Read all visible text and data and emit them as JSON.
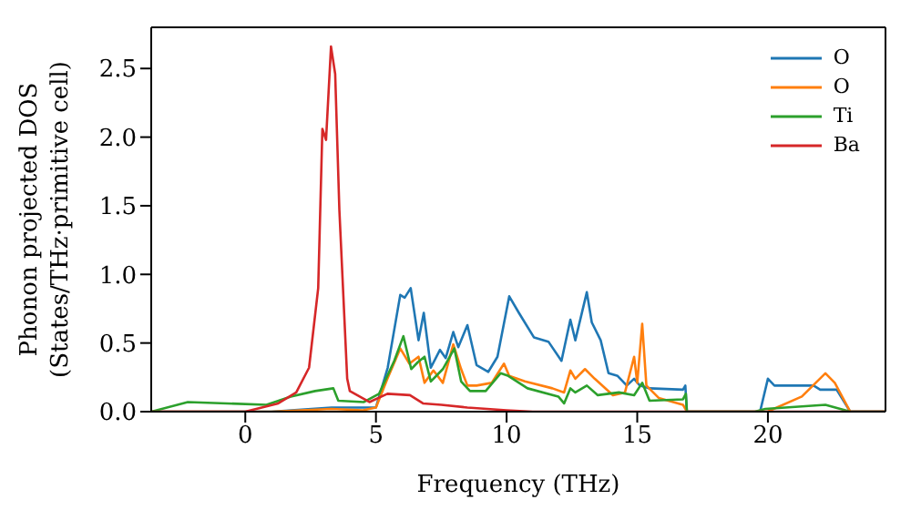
{
  "chart_data": {
    "type": "line",
    "xlabel": "Frequency (THz)",
    "ylabel": "Phonon projected DOS\n(States/THz·primitive cell)",
    "xlim": [
      -3.6,
      24.5
    ],
    "ylim": [
      0,
      2.8
    ],
    "xticks": [
      0,
      5,
      10,
      15,
      20
    ],
    "yticks": [
      {
        "value": 0,
        "label": "0.0"
      },
      0.5,
      {
        "value": 1,
        "label": "1.0"
      },
      1.5,
      {
        "value": 2,
        "label": "2.0"
      },
      2.5
    ],
    "grid": false,
    "legend": "top right",
    "marker": "none",
    "line_style": "solid",
    "series": [
      {
        "name": "O",
        "color": "#1f77b4",
        "x": [
          -3.6,
          1,
          3.3,
          5.0,
          5.45,
          5.93,
          6.1,
          6.33,
          6.63,
          6.83,
          7.1,
          7.45,
          7.67,
          7.96,
          8.15,
          8.5,
          8.85,
          9.3,
          9.65,
          10.1,
          10.47,
          11.05,
          11.6,
          12.1,
          12.44,
          12.63,
          13.07,
          13.26,
          13.6,
          13.9,
          14.25,
          14.6,
          14.88,
          15.1,
          15.47,
          16.75,
          16.84,
          16.9,
          19.7,
          20.0,
          20.25,
          21.75,
          22.0,
          22.63,
          23.15,
          24.5
        ],
        "values": [
          0,
          0,
          0.03,
          0.03,
          0.32,
          0.85,
          0.83,
          0.9,
          0.52,
          0.72,
          0.32,
          0.45,
          0.39,
          0.58,
          0.47,
          0.63,
          0.34,
          0.29,
          0.4,
          0.84,
          0.72,
          0.54,
          0.51,
          0.37,
          0.67,
          0.52,
          0.87,
          0.65,
          0.52,
          0.28,
          0.26,
          0.19,
          0.24,
          0.19,
          0.17,
          0.16,
          0.19,
          0,
          0,
          0.24,
          0.19,
          0.19,
          0.16,
          0.16,
          0,
          0
        ]
      },
      {
        "name": "O",
        "color": "#ff7f0e",
        "x": [
          -3.6,
          1,
          3.3,
          4.5,
          5.0,
          5.44,
          5.93,
          6.28,
          6.63,
          6.86,
          7.2,
          7.56,
          7.96,
          8.26,
          8.5,
          8.85,
          9.43,
          9.9,
          10.1,
          10.7,
          11.75,
          12.2,
          12.44,
          12.63,
          13.0,
          13.37,
          14.07,
          14.53,
          14.88,
          15.0,
          15.19,
          15.35,
          15.82,
          16.75,
          16.9,
          20.0,
          20.1,
          21.3,
          22.2,
          22.56,
          23.15,
          24.5
        ],
        "values": [
          0,
          0,
          0.02,
          0.01,
          0.03,
          0.24,
          0.46,
          0.35,
          0.4,
          0.21,
          0.3,
          0.21,
          0.49,
          0.31,
          0.19,
          0.19,
          0.21,
          0.35,
          0.26,
          0.22,
          0.17,
          0.14,
          0.3,
          0.24,
          0.31,
          0.24,
          0.12,
          0.14,
          0.4,
          0.21,
          0.64,
          0.19,
          0.1,
          0.05,
          0,
          0,
          0.01,
          0.11,
          0.28,
          0.21,
          0,
          0
        ]
      },
      {
        "name": "Ti",
        "color": "#2ca02c",
        "x": [
          -3.6,
          -2.2,
          0.81,
          1.74,
          2.67,
          3.37,
          3.56,
          4.54,
          5.12,
          5.7,
          6.05,
          6.35,
          6.6,
          6.86,
          7.1,
          7.56,
          8.0,
          8.26,
          8.6,
          9.2,
          9.77,
          10.07,
          10.8,
          11.98,
          12.2,
          12.44,
          12.63,
          13.07,
          13.49,
          14.3,
          14.88,
          15.19,
          15.47,
          16.75,
          16.86,
          16.9,
          19.5,
          19.9,
          22.2,
          23.15,
          24.5
        ],
        "values": [
          0,
          0.07,
          0.05,
          0.11,
          0.15,
          0.17,
          0.08,
          0.07,
          0.13,
          0.37,
          0.55,
          0.31,
          0.36,
          0.4,
          0.22,
          0.31,
          0.46,
          0.22,
          0.15,
          0.15,
          0.28,
          0.26,
          0.17,
          0.11,
          0.06,
          0.17,
          0.14,
          0.19,
          0.12,
          0.14,
          0.12,
          0.21,
          0.08,
          0.09,
          0.13,
          0,
          0,
          0.02,
          0.05,
          0,
          0
        ]
      },
      {
        "name": "Ba",
        "color": "#d62728",
        "x": [
          -3.6,
          0,
          1.26,
          1.95,
          2.44,
          2.79,
          2.95,
          3.09,
          3.28,
          3.44,
          3.6,
          3.9,
          4.0,
          4.75,
          5.44,
          6.3,
          6.8,
          7.5,
          8.5,
          10,
          11,
          24.5
        ],
        "values": [
          0,
          0,
          0.06,
          0.14,
          0.32,
          0.9,
          2.06,
          1.98,
          2.66,
          2.46,
          1.47,
          0.24,
          0.15,
          0.07,
          0.13,
          0.12,
          0.06,
          0.05,
          0.03,
          0.01,
          0,
          0
        ]
      }
    ]
  }
}
